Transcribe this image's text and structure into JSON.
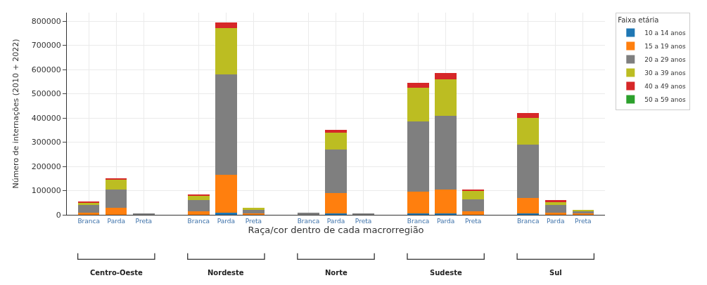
{
  "chart_data": {
    "type": "bar",
    "stacked": true,
    "xlabel": "Raça/cor dentro de cada macrorregião",
    "ylabel": "Número de internações (2010 + 2022)",
    "legend_title": "Faixa etária",
    "categories": [
      "Branca",
      "Parda",
      "Preta",
      "Branca",
      "Parda",
      "Preta",
      "Branca",
      "Parda",
      "Preta",
      "Branca",
      "Parda",
      "Preta",
      "Branca",
      "Parda",
      "Preta"
    ],
    "annotations": [
      "Centro-Oeste",
      "Nordeste",
      "Norte",
      "Sudeste",
      "Sul"
    ],
    "series": [
      {
        "name": "10 a 14 anos",
        "color": "#1f77b4",
        "values": [
          0,
          0,
          0,
          0,
          10000,
          0,
          0,
          5000,
          0,
          5000,
          5000,
          0,
          5000,
          0,
          0
        ]
      },
      {
        "name": "15 a 19 anos",
        "color": "#ff7f0e",
        "values": [
          10000,
          30000,
          0,
          15000,
          155000,
          5000,
          0,
          85000,
          0,
          90000,
          100000,
          15000,
          65000,
          10000,
          5000
        ]
      },
      {
        "name": "20 a 29 anos",
        "color": "#7f7f7f",
        "values": [
          30000,
          75000,
          5000,
          45000,
          415000,
          15000,
          10000,
          180000,
          5000,
          290000,
          305000,
          50000,
          220000,
          30000,
          10000
        ]
      },
      {
        "name": "30 a 39 anos",
        "color": "#bcbd22",
        "values": [
          10000,
          40000,
          0,
          20000,
          190000,
          10000,
          0,
          70000,
          0,
          140000,
          150000,
          35000,
          110000,
          15000,
          5000
        ]
      },
      {
        "name": "40 a 49 anos",
        "color": "#d62728",
        "values": [
          5000,
          5000,
          0,
          5000,
          25000,
          0,
          0,
          10000,
          0,
          20000,
          25000,
          5000,
          20000,
          5000,
          0
        ]
      },
      {
        "name": "50 a 59 anos",
        "color": "#2ca02c",
        "values": [
          0,
          0,
          0,
          0,
          0,
          0,
          0,
          0,
          0,
          0,
          0,
          0,
          0,
          0,
          0
        ]
      }
    ],
    "ylim": [
      0,
      835000
    ],
    "yticks": [
      0,
      100000,
      200000,
      300000,
      400000,
      500000,
      600000,
      700000,
      800000
    ],
    "grid": true,
    "legend": "top right"
  }
}
